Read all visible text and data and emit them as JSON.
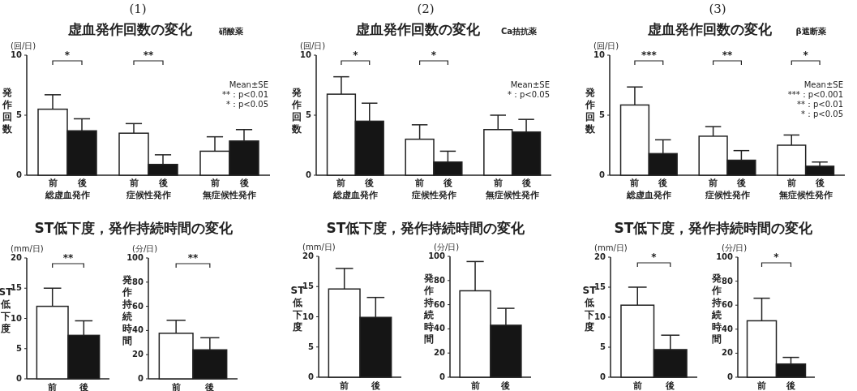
{
  "chart_data": [
    {
      "type": "bar",
      "title": "(1)",
      "subtitle": "虚血発作回数の変化",
      "ylabel": "発作回数",
      "categories": [
        "総虚血発作",
        "症候性発作",
        "無症候性発作"
      ],
      "ylim": [
        0,
        10
      ],
      "yticks": [
        0,
        5,
        10
      ],
      "series": [
        {
          "name": "前",
          "color": "#ffffff",
          "values": [
            5.5,
            3.5,
            2.0
          ],
          "errors": [
            [
              5.5,
              6.7
            ],
            [
              3.5,
              4.3
            ],
            [
              2.0,
              3.2
            ]
          ]
        },
        {
          "name": "後",
          "color": "#151515",
          "values": [
            3.7,
            0.9,
            2.85
          ],
          "errors": [
            [
              3.7,
              4.7
            ],
            [
              0.9,
              1.7
            ],
            [
              2.85,
              3.8
            ]
          ]
        }
      ],
      "annotations": [
        "硝酸薬",
        "(回/日)",
        "Mean±SE",
        "**：p<0.01",
        "*：p<0.05",
        "*",
        "**"
      ]
    },
    {
      "type": "bar",
      "title": "(2)",
      "subtitle": "虚血発作回数の変化",
      "ylabel": "発作回数",
      "categories": [
        "総虚血発作",
        "症候性発作",
        "無症候性発作"
      ],
      "ylim": [
        0,
        10
      ],
      "yticks": [
        0,
        5,
        10
      ],
      "series": [
        {
          "name": "前",
          "color": "#ffffff",
          "values": [
            6.75,
            3.0,
            3.8
          ],
          "errors": [
            [
              6.75,
              8.2
            ],
            [
              3.0,
              4.2
            ],
            [
              3.8,
              5.0
            ]
          ]
        },
        {
          "name": "後",
          "color": "#151515",
          "values": [
            4.5,
            1.1,
            3.6
          ],
          "errors": [
            [
              4.5,
              6.0
            ],
            [
              1.1,
              2.0
            ],
            [
              3.6,
              4.65
            ]
          ]
        }
      ],
      "annotations": [
        "Ca拮抗薬",
        "(回/日)",
        "Mean±SE",
        "*：p<0.05",
        "*",
        "*"
      ]
    },
    {
      "type": "bar",
      "title": "(3)",
      "subtitle": "虚血発作回数の変化",
      "ylabel": "発作回数",
      "categories": [
        "総虚血発作",
        "症候性発作",
        "無症候性発作"
      ],
      "ylim": [
        0,
        10
      ],
      "yticks": [
        0,
        5,
        10
      ],
      "series": [
        {
          "name": "前",
          "color": "#ffffff",
          "values": [
            5.85,
            3.25,
            2.5
          ],
          "errors": [
            [
              5.85,
              7.35
            ],
            [
              3.25,
              4.05
            ],
            [
              2.5,
              3.35
            ]
          ]
        },
        {
          "name": "後",
          "color": "#151515",
          "values": [
            1.8,
            1.25,
            0.75
          ],
          "errors": [
            [
              1.8,
              2.95
            ],
            [
              1.25,
              2.05
            ],
            [
              0.75,
              1.1
            ]
          ]
        }
      ],
      "annotations": [
        "β遮断薬",
        "(回/日)",
        "Mean±SE",
        "***：p<0.001",
        "**：p<0.01",
        "*：p<0.05",
        "***",
        "**",
        "*"
      ]
    },
    {
      "type": "bar",
      "title": "ST低下度，発作持続時間の変化",
      "ylabel": "ST低下度",
      "categories": [
        "前",
        "後"
      ],
      "colors": [
        "#ffffff",
        "#151515"
      ],
      "values": [
        12.0,
        7.2
      ],
      "errors": [
        [
          12.0,
          15.0
        ],
        [
          7.2,
          9.6
        ]
      ],
      "ylim": [
        0,
        20
      ],
      "yticks": [
        0,
        5,
        10,
        15,
        20
      ],
      "annotations": [
        "(mm/日)",
        "**"
      ]
    },
    {
      "type": "bar",
      "ylabel": "発作持続時間",
      "categories": [
        "前",
        "後"
      ],
      "colors": [
        "#ffffff",
        "#151515"
      ],
      "values": [
        37.7,
        24.0
      ],
      "errors": [
        [
          37.7,
          48.4
        ],
        [
          24.0,
          34.0
        ]
      ],
      "ylim": [
        0,
        100
      ],
      "yticks": [
        0,
        20,
        40,
        60,
        80,
        100
      ],
      "annotations": [
        "(分/日)",
        "**"
      ]
    },
    {
      "type": "bar",
      "title": "ST低下度，発作持続時間の変化",
      "ylabel": "ST低下度",
      "categories": [
        "前",
        "後"
      ],
      "colors": [
        "#ffffff",
        "#151515"
      ],
      "values": [
        14.6,
        9.9
      ],
      "errors": [
        [
          14.6,
          18.0
        ],
        [
          9.9,
          13.2
        ]
      ],
      "ylim": [
        0,
        20
      ],
      "yticks": [
        0,
        5,
        10,
        15,
        20
      ],
      "annotations": [
        "(mm/日)"
      ]
    },
    {
      "type": "bar",
      "ylabel": "発作持続時間",
      "categories": [
        "前",
        "後"
      ],
      "colors": [
        "#ffffff",
        "#151515"
      ],
      "values": [
        71.5,
        43.0
      ],
      "errors": [
        [
          71.5,
          95.7
        ],
        [
          43.0,
          57.0
        ]
      ],
      "ylim": [
        0,
        100
      ],
      "yticks": [
        0,
        20,
        40,
        60,
        80,
        100
      ],
      "annotations": [
        "(分/日)"
      ]
    },
    {
      "type": "bar",
      "title": "ST低下度，発作持続時間の変化",
      "ylabel": "ST低下度",
      "categories": [
        "前",
        "後"
      ],
      "colors": [
        "#ffffff",
        "#151515"
      ],
      "values": [
        12.0,
        4.6
      ],
      "errors": [
        [
          12.0,
          15.0
        ],
        [
          4.6,
          7.0
        ]
      ],
      "ylim": [
        0,
        20
      ],
      "yticks": [
        0,
        5,
        10,
        15,
        20
      ],
      "annotations": [
        "(mm/日)",
        "*"
      ]
    },
    {
      "type": "bar",
      "ylabel": "発作持続時間",
      "categories": [
        "前",
        "後"
      ],
      "colors": [
        "#ffffff",
        "#151515"
      ],
      "values": [
        47.0,
        11.0
      ],
      "errors": [
        [
          47.0,
          65.8
        ],
        [
          11.0,
          16.5
        ]
      ],
      "ylim": [
        0,
        100
      ],
      "yticks": [
        0,
        20,
        40,
        60,
        80,
        100
      ],
      "annotations": [
        "(分/日)",
        "*"
      ]
    }
  ]
}
